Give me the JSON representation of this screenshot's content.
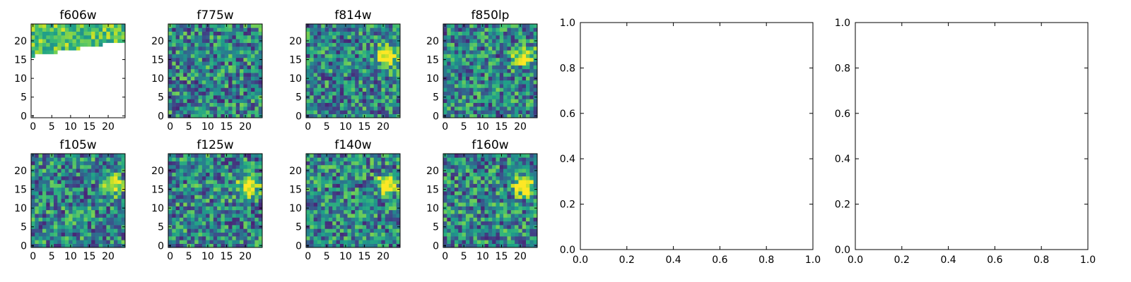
{
  "chart_data": [
    {
      "type": "heatmap",
      "title": "f606w",
      "xticks": [
        "0",
        "5",
        "10",
        "15",
        "20"
      ],
      "yticks": [
        "0",
        "5",
        "10",
        "15",
        "20"
      ],
      "xlim": [
        -0.5,
        24.5
      ],
      "ylim": [
        -0.5,
        24.5
      ],
      "colormap": "viridis",
      "seed": 11,
      "masked_region": "lower portion blank; data only in top rows (y > ~16 at left rising to ~20 at right)"
    },
    {
      "type": "heatmap",
      "title": "f775w",
      "xticks": [
        "0",
        "5",
        "10",
        "15",
        "20"
      ],
      "yticks": [
        "0",
        "5",
        "10",
        "15",
        "20"
      ],
      "xlim": [
        -0.5,
        24.5
      ],
      "ylim": [
        -0.5,
        24.5
      ],
      "colormap": "viridis",
      "seed": 22
    },
    {
      "type": "heatmap",
      "title": "f814w",
      "xticks": [
        "0",
        "5",
        "10",
        "15",
        "20"
      ],
      "yticks": [
        "0",
        "5",
        "10",
        "15",
        "20"
      ],
      "xlim": [
        -0.5,
        24.5
      ],
      "ylim": [
        -0.5,
        24.5
      ],
      "colormap": "viridis",
      "seed": 33,
      "bright_source": [
        21,
        16
      ]
    },
    {
      "type": "heatmap",
      "title": "f850lp",
      "xticks": [
        "0",
        "5",
        "10",
        "15",
        "20"
      ],
      "yticks": [
        "0",
        "5",
        "10",
        "15",
        "20"
      ],
      "xlim": [
        -0.5,
        24.5
      ],
      "ylim": [
        -0.5,
        24.5
      ],
      "colormap": "viridis",
      "seed": 44,
      "bright_source": [
        21,
        16
      ]
    },
    {
      "type": "heatmap",
      "title": "f105w",
      "xticks": [
        "0",
        "5",
        "10",
        "15",
        "20"
      ],
      "yticks": [
        "0",
        "5",
        "10",
        "15",
        "20"
      ],
      "xlim": [
        -0.5,
        24.5
      ],
      "ylim": [
        -0.5,
        24.5
      ],
      "colormap": "viridis",
      "seed": 55,
      "bright_source": [
        21,
        16
      ]
    },
    {
      "type": "heatmap",
      "title": "f125w",
      "xticks": [
        "0",
        "5",
        "10",
        "15",
        "20"
      ],
      "yticks": [
        "0",
        "5",
        "10",
        "15",
        "20"
      ],
      "xlim": [
        -0.5,
        24.5
      ],
      "ylim": [
        -0.5,
        24.5
      ],
      "colormap": "viridis",
      "seed": 66,
      "bright_source": [
        21,
        16
      ]
    },
    {
      "type": "heatmap",
      "title": "f140w",
      "xticks": [
        "0",
        "5",
        "10",
        "15",
        "20"
      ],
      "yticks": [
        "0",
        "5",
        "10",
        "15",
        "20"
      ],
      "xlim": [
        -0.5,
        24.5
      ],
      "ylim": [
        -0.5,
        24.5
      ],
      "colormap": "viridis",
      "seed": 77,
      "bright_source": [
        21,
        16
      ]
    },
    {
      "type": "heatmap",
      "title": "f160w",
      "xticks": [
        "0",
        "5",
        "10",
        "15",
        "20"
      ],
      "yticks": [
        "0",
        "5",
        "10",
        "15",
        "20"
      ],
      "xlim": [
        -0.5,
        24.5
      ],
      "ylim": [
        -0.5,
        24.5
      ],
      "colormap": "viridis",
      "seed": 88,
      "bright_source": [
        21,
        16
      ]
    },
    {
      "type": "scatter",
      "title": "",
      "xlim": [
        0.0,
        1.0
      ],
      "ylim": [
        0.0,
        1.0
      ],
      "xticks": [
        "0.0",
        "0.2",
        "0.4",
        "0.6",
        "0.8",
        "1.0"
      ],
      "yticks": [
        "0.0",
        "0.2",
        "0.4",
        "0.6",
        "0.8",
        "1.0"
      ],
      "series": []
    },
    {
      "type": "scatter",
      "title": "",
      "xlim": [
        0.0,
        1.0
      ],
      "ylim": [
        0.0,
        1.0
      ],
      "xticks": [
        "0.0",
        "0.2",
        "0.4",
        "0.6",
        "0.8",
        "1.0"
      ],
      "yticks": [
        "0.0",
        "0.2",
        "0.4",
        "0.6",
        "0.8",
        "1.0"
      ],
      "series": []
    }
  ]
}
